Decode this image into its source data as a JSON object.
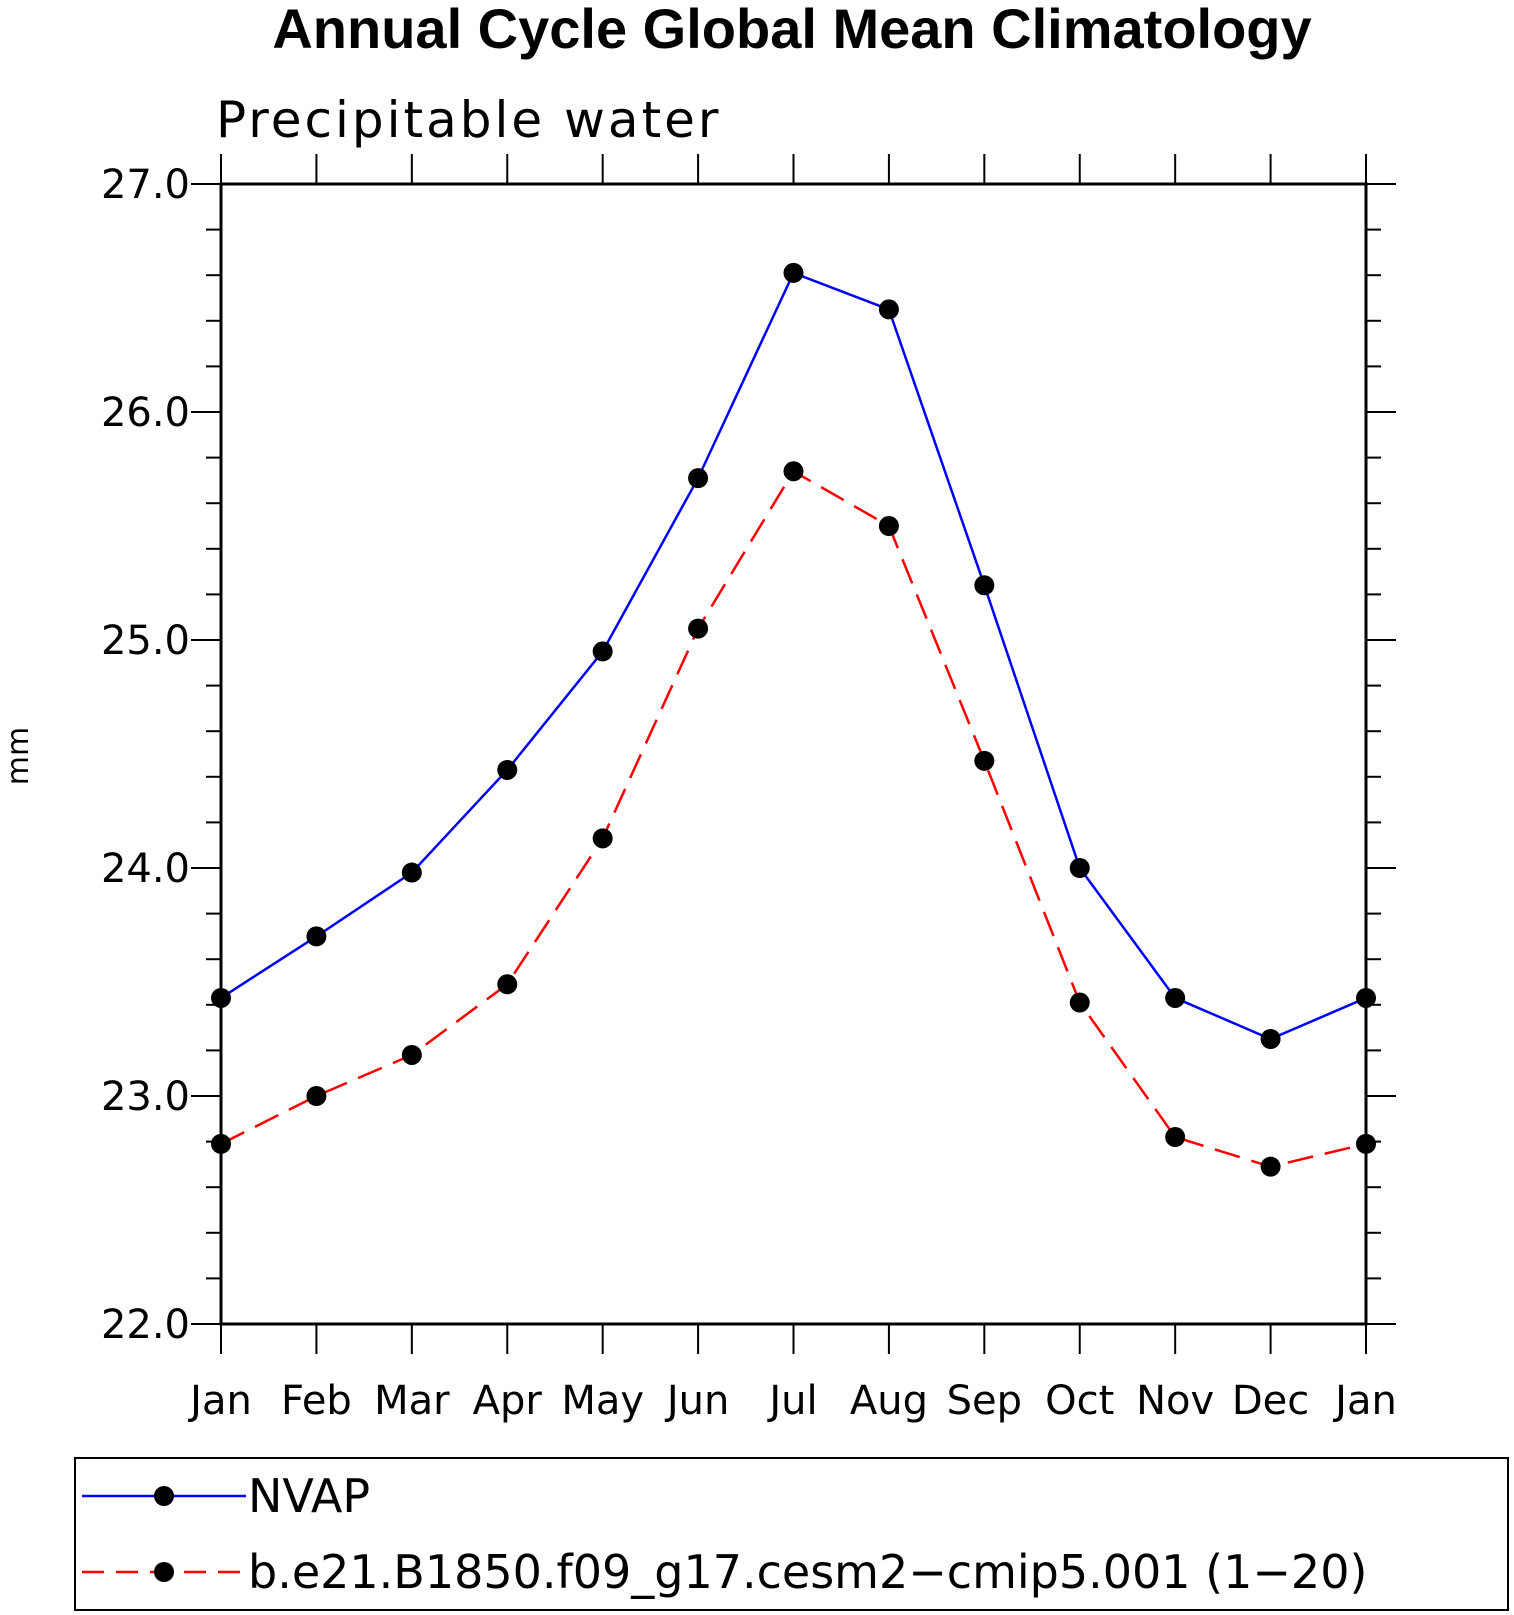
{
  "chart_data": {
    "type": "line",
    "title": "Annual Cycle Global Mean Climatology",
    "subtitle": "Precipitable water",
    "ylabel": "mm",
    "xlabel": "",
    "ylim": [
      22.0,
      27.0
    ],
    "yticks": [
      "22.0",
      "23.0",
      "24.0",
      "25.0",
      "26.0",
      "27.0"
    ],
    "categories": [
      "Jan",
      "Feb",
      "Mar",
      "Apr",
      "May",
      "Jun",
      "Jul",
      "Aug",
      "Sep",
      "Oct",
      "Nov",
      "Dec",
      "Jan"
    ],
    "series": [
      {
        "name": "NVAP",
        "color": "#0000ff",
        "dash": "solid",
        "values": [
          23.43,
          23.7,
          23.98,
          24.43,
          24.95,
          25.71,
          26.61,
          26.45,
          25.24,
          24.0,
          23.43,
          23.25,
          23.43
        ]
      },
      {
        "name": "b.e21.B1850.f09_g17.cesm2−cmip5.001 (1−20)",
        "color": "#ff0000",
        "dash": "dashed",
        "values": [
          22.79,
          23.0,
          23.18,
          23.49,
          24.13,
          25.05,
          25.74,
          25.5,
          24.47,
          23.41,
          22.82,
          22.69,
          22.79
        ]
      }
    ]
  }
}
